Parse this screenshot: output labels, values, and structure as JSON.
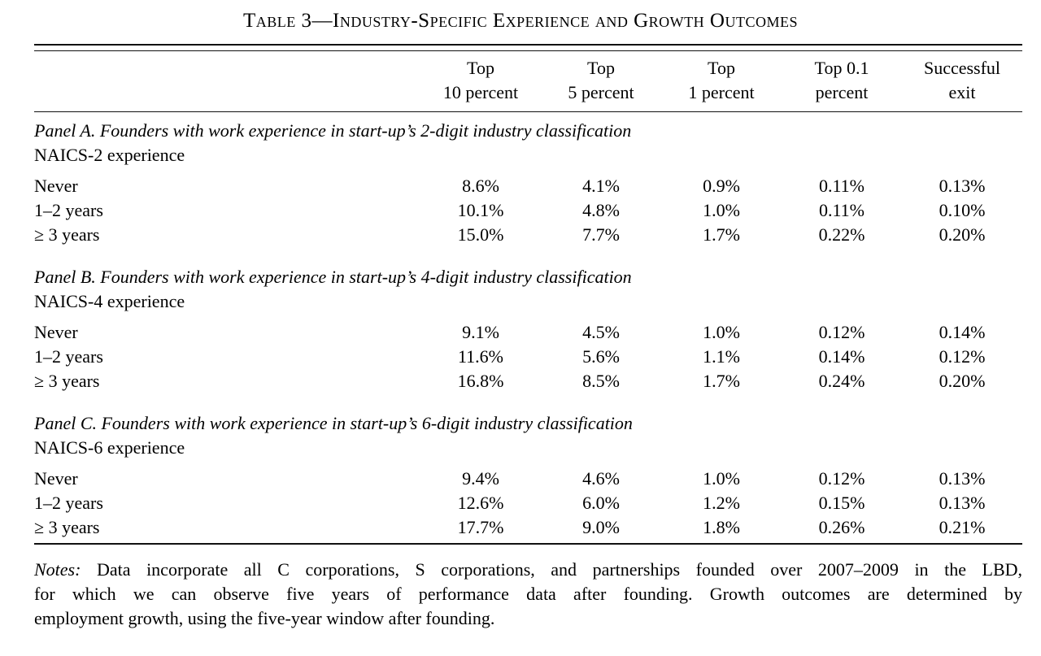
{
  "title": "Table 3—Industry-Specific Experience and Growth Outcomes",
  "table": {
    "columns": [
      {
        "line1": "Top",
        "line2": "10 percent"
      },
      {
        "line1": "Top",
        "line2": "5 percent"
      },
      {
        "line1": "Top",
        "line2": "1 percent"
      },
      {
        "line1": "Top 0.1",
        "line2": "percent"
      },
      {
        "line1": "Successful",
        "line2": "exit"
      }
    ],
    "panels": [
      {
        "heading": "Panel A. Founders with work experience in start-up’s 2-digit industry classification",
        "subheading": "NAICS-2 experience",
        "rows": [
          {
            "label": "Never",
            "values": [
              "8.6%",
              "4.1%",
              "0.9%",
              "0.11%",
              "0.13%"
            ]
          },
          {
            "label": "1–2 years",
            "values": [
              "10.1%",
              "4.8%",
              "1.0%",
              "0.11%",
              "0.10%"
            ]
          },
          {
            "label": "≥ 3 years",
            "values": [
              "15.0%",
              "7.7%",
              "1.7%",
              "0.22%",
              "0.20%"
            ]
          }
        ]
      },
      {
        "heading": "Panel B. Founders with work experience in start-up’s 4-digit industry classification",
        "subheading": "NAICS-4 experience",
        "rows": [
          {
            "label": "Never",
            "values": [
              "9.1%",
              "4.5%",
              "1.0%",
              "0.12%",
              "0.14%"
            ]
          },
          {
            "label": "1–2 years",
            "values": [
              "11.6%",
              "5.6%",
              "1.1%",
              "0.14%",
              "0.12%"
            ]
          },
          {
            "label": "≥ 3 years",
            "values": [
              "16.8%",
              "8.5%",
              "1.7%",
              "0.24%",
              "0.20%"
            ]
          }
        ]
      },
      {
        "heading": "Panel C. Founders with work experience in start-up’s 6-digit industry classification",
        "subheading": "NAICS-6 experience",
        "rows": [
          {
            "label": "Never",
            "values": [
              "9.4%",
              "4.6%",
              "1.0%",
              "0.12%",
              "0.13%"
            ]
          },
          {
            "label": "1–2 years",
            "values": [
              "12.6%",
              "6.0%",
              "1.2%",
              "0.15%",
              "0.13%"
            ]
          },
          {
            "label": "≥ 3 years",
            "values": [
              "17.7%",
              "9.0%",
              "1.8%",
              "0.26%",
              "0.21%"
            ]
          }
        ]
      }
    ]
  },
  "notes": {
    "label": "Notes:",
    "line1": "Data incorporate all C corporations, S corporations, and partnerships founded over 2007–2009 in the LBD,",
    "line2": "for which we can observe five years of performance data after founding. Growth outcomes are determined by",
    "line3": "employment growth, using the five-year window after founding.",
    "text_color": "#000000",
    "rule_color": "#111111",
    "background_color": "#ffffff"
  }
}
